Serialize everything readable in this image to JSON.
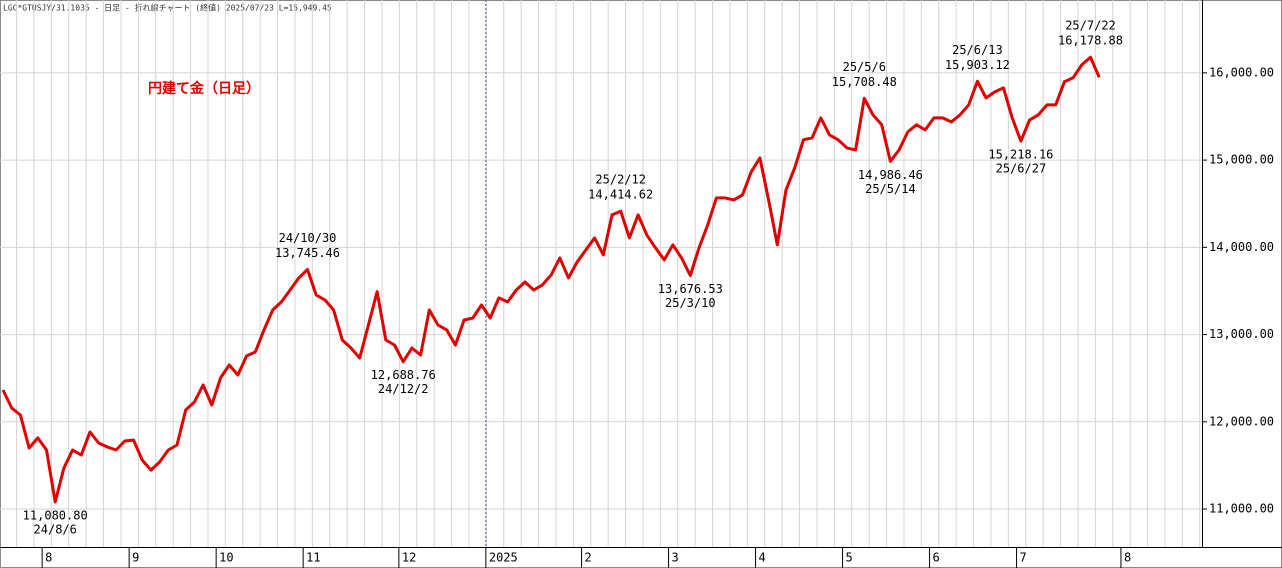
{
  "chart_data": {
    "type": "line",
    "header": "LGC*GTUSJY/31.1035 - 日足 - 折れ線チャート (終値)  2025/07/23  L=15,949.45",
    "categories": [
      null,
      null,
      null,
      null,
      null,
      "8",
      null,
      null,
      null,
      null,
      null,
      null,
      null,
      null,
      null,
      "9",
      null,
      null,
      null,
      null,
      null,
      null,
      null,
      null,
      null,
      "10",
      null,
      null,
      null,
      null,
      null,
      null,
      null,
      null,
      null,
      "11",
      null,
      null,
      null,
      null,
      null,
      null,
      null,
      null,
      null,
      null,
      "12",
      null,
      null,
      null,
      null,
      null,
      null,
      null,
      null,
      null,
      "2025",
      null,
      null,
      null,
      null,
      null,
      null,
      null,
      null,
      null,
      null,
      "2",
      null,
      null,
      null,
      null,
      null,
      null,
      null,
      null,
      null,
      "3",
      null,
      null,
      null,
      null,
      null,
      null,
      null,
      null,
      null,
      "4",
      null,
      null,
      null,
      null,
      null,
      null,
      null,
      null,
      null,
      "5",
      null,
      null,
      null,
      null,
      null,
      null,
      null,
      null,
      null,
      "6",
      null,
      null,
      null,
      null,
      null,
      null,
      null,
      null,
      null,
      "7",
      null,
      null,
      null,
      null,
      null,
      null,
      null,
      null,
      null,
      null,
      null,
      "8",
      null,
      null,
      null,
      null,
      null,
      null,
      null,
      null
    ],
    "series": [
      {
        "name": "円建て金（日足）",
        "color": "#e00000",
        "values": [
          12365,
          12158,
          12078,
          11700,
          11815,
          11677,
          11080.8,
          11470,
          11677,
          11619,
          11883,
          11757,
          11711,
          11677,
          11780,
          11791,
          11562,
          11447,
          11539,
          11677,
          11734,
          12135,
          12227,
          12422,
          12193,
          12502,
          12651,
          12537,
          12755,
          12800,
          13053,
          13282,
          13374,
          13511,
          13649,
          13745.46,
          13454,
          13397,
          13282,
          12938,
          12846,
          12731,
          13110,
          13491,
          12938,
          12881,
          12688.76,
          12846,
          12766,
          13282,
          13110,
          13053,
          12881,
          13167,
          13190,
          13339,
          13190,
          13420,
          13374,
          13511,
          13603,
          13511,
          13569,
          13683,
          13878,
          13649,
          13833,
          13970,
          14108,
          13913,
          14372,
          14414.62,
          14108,
          14372,
          14142,
          13993,
          13856,
          14028,
          13878,
          13676.53,
          13993,
          14257,
          14567,
          14567,
          14544,
          14601,
          14865,
          15025,
          14544,
          14028,
          14658,
          14911,
          15232,
          15255,
          15484,
          15289,
          15232,
          15140,
          15117,
          15708.48,
          15518,
          15404,
          14986.46,
          15117,
          15323,
          15404,
          15346,
          15484,
          15484,
          15438,
          15518,
          15633,
          15903.12,
          15713,
          15782,
          15828,
          15484,
          15218.16,
          15461,
          15518,
          15633,
          15633,
          15897,
          15943,
          16092,
          16178.88,
          15949.45,
          null,
          null,
          null,
          null,
          null,
          null,
          null,
          null,
          null,
          null,
          null
        ],
        "value_labels": [
          null,
          null,
          null,
          null,
          null,
          null,
          "11,080.80",
          null,
          null,
          null,
          null,
          null,
          null,
          null,
          null,
          null,
          null,
          null,
          null,
          null,
          null,
          null,
          null,
          null,
          null,
          null,
          null,
          null,
          null,
          null,
          null,
          null,
          null,
          null,
          null,
          "13,745.46",
          null,
          null,
          null,
          null,
          null,
          null,
          null,
          null,
          null,
          null,
          "12,688.76",
          null,
          null,
          null,
          null,
          null,
          null,
          null,
          null,
          null,
          null,
          null,
          null,
          null,
          null,
          null,
          null,
          null,
          null,
          null,
          null,
          null,
          null,
          null,
          null,
          "14,414.62",
          null,
          null,
          null,
          null,
          null,
          null,
          null,
          "13,676.53",
          null,
          null,
          null,
          null,
          null,
          null,
          null,
          null,
          null,
          null,
          null,
          null,
          null,
          null,
          null,
          null,
          null,
          null,
          null,
          "15,708.48",
          null,
          null,
          "14,986.46",
          null,
          null,
          null,
          null,
          null,
          null,
          null,
          null,
          null,
          "15,903.12",
          null,
          null,
          null,
          null,
          "15,218.16",
          null,
          null,
          null,
          null,
          null,
          null,
          null,
          "16,178.88",
          null,
          null,
          null,
          null,
          null,
          null,
          null,
          null,
          null,
          null,
          null,
          null
        ],
        "date_labels": [
          null,
          null,
          null,
          null,
          null,
          null,
          "24/8/6",
          null,
          null,
          null,
          null,
          null,
          null,
          null,
          null,
          null,
          null,
          null,
          null,
          null,
          null,
          null,
          null,
          null,
          null,
          null,
          null,
          null,
          null,
          null,
          null,
          null,
          null,
          null,
          null,
          "24/10/30",
          null,
          null,
          null,
          null,
          null,
          null,
          null,
          null,
          null,
          null,
          "24/12/2",
          null,
          null,
          null,
          null,
          null,
          null,
          null,
          null,
          null,
          null,
          null,
          null,
          null,
          null,
          null,
          null,
          null,
          null,
          null,
          null,
          null,
          null,
          null,
          null,
          "25/2/12",
          null,
          null,
          null,
          null,
          null,
          null,
          null,
          "25/3/10",
          null,
          null,
          null,
          null,
          null,
          null,
          null,
          null,
          null,
          null,
          null,
          null,
          null,
          null,
          null,
          null,
          null,
          null,
          null,
          "25/5/6",
          null,
          null,
          "25/5/14",
          null,
          null,
          null,
          null,
          null,
          null,
          null,
          null,
          null,
          "25/6/13",
          null,
          null,
          null,
          null,
          "25/6/27",
          null,
          null,
          null,
          null,
          null,
          null,
          null,
          "25/7/22",
          null,
          null,
          null,
          null,
          null,
          null,
          null,
          null,
          null,
          null,
          null,
          null
        ]
      }
    ],
    "ylim": [
      10565,
      16835
    ],
    "yticks": [
      {
        "value": 11000,
        "label": "11,000.00"
      },
      {
        "value": 12000,
        "label": "12,000.00"
      },
      {
        "value": 13000,
        "label": "13,000.00"
      },
      {
        "value": 14000,
        "label": "14,000.00"
      },
      {
        "value": 15000,
        "label": "15,000.00"
      },
      {
        "value": 16000,
        "label": "16,000.00"
      }
    ],
    "grid": true
  }
}
